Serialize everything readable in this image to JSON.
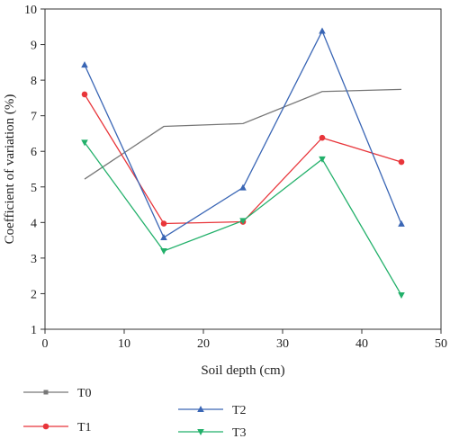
{
  "chart_data": {
    "type": "line",
    "xlabel": "Soil depth (cm)",
    "ylabel": "Coefficient of variation (%)",
    "xlim": [
      0,
      50
    ],
    "ylim": [
      1,
      10
    ],
    "xticks": [
      0,
      10,
      20,
      30,
      40,
      50
    ],
    "yticks": [
      1,
      2,
      3,
      4,
      5,
      6,
      7,
      8,
      9,
      10
    ],
    "grid": false,
    "legend_position": "bottom",
    "x": [
      5,
      15,
      25,
      35,
      45
    ],
    "series": [
      {
        "name": "T0",
        "color": "#777777",
        "marker": "square",
        "values": [
          5.22,
          6.7,
          6.78,
          7.68,
          7.74
        ]
      },
      {
        "name": "T1",
        "color": "#e8353a",
        "marker": "circle",
        "values": [
          7.6,
          3.97,
          4.02,
          6.38,
          5.7
        ]
      },
      {
        "name": "T2",
        "color": "#3a66b5",
        "marker": "triangle-up",
        "values": [
          8.43,
          3.58,
          4.98,
          9.38,
          3.96
        ]
      },
      {
        "name": "T3",
        "color": "#22b06a",
        "marker": "triangle-down",
        "values": [
          6.25,
          3.2,
          4.05,
          5.78,
          1.96
        ]
      }
    ]
  }
}
